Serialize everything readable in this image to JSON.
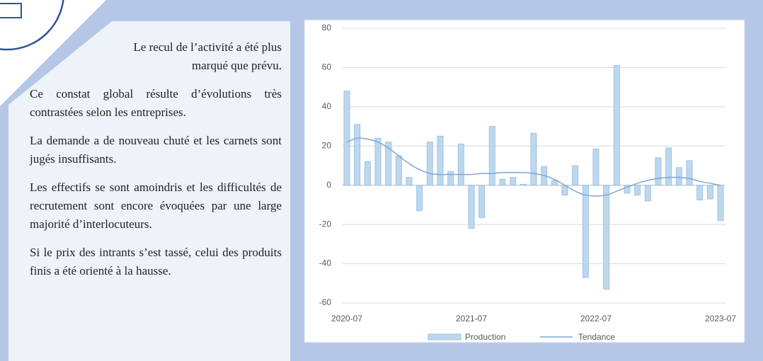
{
  "paragraphs": [
    "Le recul de l’activité a été plus marqué que prévu.",
    "Ce constat global résulte d’évolutions très contrastées selon les entreprises.",
    "La demande a de nouveau chuté et les carnets sont jugés insuffisants.",
    "Les effectifs se sont amoindris et les difficultés de recrutement sont encore évoquées par une large majorité d’interlocuteurs.",
    "Si le prix des intrants s’est tassé, celui des produits finis a été orienté à la hausse."
  ],
  "chart_data": {
    "type": "bar_line",
    "categories": [
      "2020-07",
      null,
      null,
      null,
      null,
      null,
      null,
      null,
      null,
      null,
      null,
      null,
      "2021-07",
      null,
      null,
      null,
      null,
      null,
      null,
      null,
      null,
      null,
      null,
      null,
      "2022-07",
      null,
      null,
      null,
      null,
      null,
      null,
      null,
      null,
      null,
      null,
      null,
      "2023-07"
    ],
    "series": [
      {
        "name": "Production",
        "type": "bar",
        "color": "#bdd7ee",
        "values": [
          48,
          31,
          12,
          24,
          22,
          15,
          4,
          -13,
          22,
          25,
          7,
          21,
          -22,
          -16.5,
          30,
          3,
          4,
          0.5,
          26.5,
          9.5,
          2.5,
          -5,
          10,
          -47,
          18.5,
          -53,
          61,
          -4,
          -5,
          -8,
          14,
          19,
          9,
          12.5,
          -7.5,
          -7,
          -18
        ]
      },
      {
        "name": "Tendance",
        "type": "line",
        "color": "#7fa7d4",
        "values": [
          22,
          24,
          23.5,
          22,
          19,
          15,
          11,
          8,
          6,
          5.5,
          5.5,
          5.5,
          5.5,
          6,
          6,
          6.5,
          6.5,
          6.5,
          6,
          5,
          3,
          0,
          -3,
          -5,
          -5.5,
          -5,
          -3,
          -1,
          1,
          2.5,
          3.5,
          4,
          4,
          3.5,
          2,
          1,
          0
        ]
      }
    ],
    "ylim": [
      -60,
      80
    ],
    "yticks": [
      -60,
      -40,
      -20,
      0,
      20,
      40,
      60,
      80
    ],
    "grid": true
  }
}
